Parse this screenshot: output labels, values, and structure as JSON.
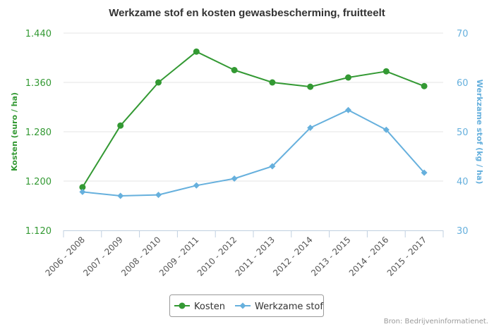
{
  "chart_data": {
    "type": "line",
    "title": "Werkzame stof en kosten gewasbescherming, fruitteelt",
    "categories": [
      "2006 - 2008",
      "2007 - 2009",
      "2008 - 2010",
      "2009 - 2011",
      "2010 - 2012",
      "2011 - 2013",
      "2012 - 2014",
      "2013 - 2015",
      "2014 - 2016",
      "2015 - 2017"
    ],
    "y_left": {
      "label": "Kosten (euro / ha)",
      "ylim": [
        1120,
        1440
      ],
      "ticks": [
        1120,
        1200,
        1280,
        1360,
        1440
      ],
      "tick_labels": [
        "1.120",
        "1.200",
        "1.280",
        "1.360",
        "1.440"
      ],
      "color": "#339933"
    },
    "y_right": {
      "label": "Werkzame stof (kg / ha)",
      "ylim": [
        30,
        70
      ],
      "ticks": [
        30,
        40,
        50,
        60,
        70
      ],
      "tick_labels": [
        "30",
        "40",
        "50",
        "60",
        "70"
      ],
      "color": "#66b0dd"
    },
    "series": [
      {
        "name": "Kosten",
        "axis": "left",
        "color": "#339933",
        "marker": "circle",
        "values": [
          1190,
          1290,
          1360,
          1410,
          1380,
          1360,
          1353,
          1368,
          1378,
          1354
        ]
      },
      {
        "name": "Werkzame stof",
        "axis": "right",
        "color": "#66b0dd",
        "marker": "diamond",
        "values": [
          37.8,
          37.0,
          37.2,
          39.1,
          40.5,
          43.0,
          50.8,
          54.4,
          50.4,
          41.7
        ]
      }
    ],
    "grid": true,
    "legend": {
      "position": "bottom-center"
    },
    "credit": "Bron: Bedrijveninformatienet."
  }
}
